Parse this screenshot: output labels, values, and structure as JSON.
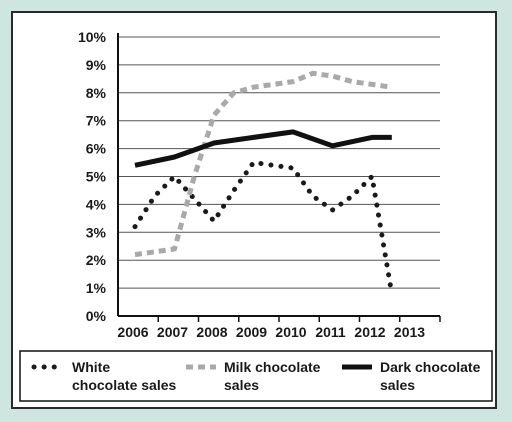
{
  "chart_data": {
    "type": "line",
    "categories": [
      "2006",
      "2007",
      "2008",
      "2009",
      "2010",
      "2011",
      "2012",
      "2013"
    ],
    "y_ticks": [
      "0%",
      "1%",
      "2%",
      "3%",
      "4%",
      "5%",
      "6%",
      "7%",
      "8%",
      "9%",
      "10%"
    ],
    "ylim": [
      0,
      10
    ],
    "grid": true,
    "legend_position": "bottom",
    "series": [
      {
        "name_lines": [
          "White",
          "chocolate sales"
        ],
        "style": "dotted",
        "color": "#1a1a1a",
        "x": [
          2006,
          2006.5,
          2007,
          2007.5,
          2008,
          2008.5,
          2009,
          2009.5,
          2010,
          2010.5,
          2011,
          2011.5,
          2012,
          2012.5
        ],
        "values": [
          3.2,
          4.3,
          5.0,
          4.2,
          3.4,
          4.5,
          5.5,
          5.4,
          5.3,
          4.3,
          3.8,
          4.3,
          5.0,
          0.8
        ]
      },
      {
        "name_lines": [
          "Milk chocolate",
          "sales"
        ],
        "style": "dashed",
        "color": "#a9a9a9",
        "x": [
          2006,
          2006.5,
          2007,
          2007.5,
          2008,
          2008.5,
          2009,
          2009.5,
          2010,
          2010.5,
          2011,
          2011.5,
          2012,
          2012.5
        ],
        "values": [
          2.2,
          2.3,
          2.4,
          5.0,
          7.2,
          8.0,
          8.2,
          8.3,
          8.4,
          8.7,
          8.6,
          8.4,
          8.3,
          8.2
        ]
      },
      {
        "name_lines": [
          "Dark chocolate",
          "sales"
        ],
        "style": "solid",
        "color": "#111111",
        "x": [
          2006,
          2007,
          2008,
          2009,
          2010,
          2011,
          2012,
          2012.5
        ],
        "values": [
          5.4,
          5.7,
          6.2,
          6.4,
          6.6,
          6.1,
          6.4,
          6.4
        ]
      }
    ]
  }
}
